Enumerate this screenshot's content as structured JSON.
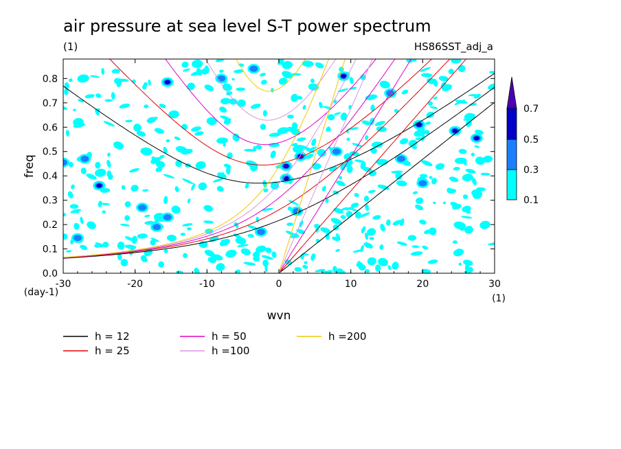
{
  "chart_data": {
    "type": "heatmap",
    "title": "air pressure at sea level S-T power spectrum",
    "subtitle_left": "(1)",
    "subtitle_right": "HS86SST_adj_a",
    "xlabel": "wvn",
    "ylabel": "freq",
    "x_unit_label": "(1)",
    "y_unit_label": "(day-1)",
    "xlim": [
      -30,
      30
    ],
    "ylim": [
      0,
      0.88
    ],
    "x_ticks": [
      -30,
      -20,
      -10,
      0,
      10,
      20,
      30
    ],
    "x_tick_labels": [
      "-30",
      "-20",
      "-10",
      "0",
      "10",
      "20",
      "30"
    ],
    "y_ticks": [
      0,
      0.1,
      0.2,
      0.3,
      0.4,
      0.5,
      0.6,
      0.7,
      0.8
    ],
    "y_tick_labels": [
      "0.0",
      "0.1",
      "0.2",
      "0.3",
      "0.4",
      "0.5",
      "0.6",
      "0.7",
      "0.8"
    ],
    "contour_levels": [
      0.1,
      0.3,
      0.5,
      0.7
    ],
    "colorbar_labels": [
      "0.1",
      "0.3",
      "0.5",
      "0.7"
    ],
    "colorbar_colors": [
      "#00ffff",
      "#1a7fff",
      "#0000c8",
      "#4a00b4"
    ],
    "dispersion_curves": [
      {
        "name": "h = 12",
        "depth": 12,
        "color": "#000000"
      },
      {
        "name": "h = 25",
        "depth": 25,
        "color": "#e00000"
      },
      {
        "name": "h = 50",
        "depth": 50,
        "color": "#e000c8"
      },
      {
        "name": "h =100",
        "depth": 100,
        "color": "#d796e0"
      },
      {
        "name": "h =200",
        "depth": 200,
        "color": "#f0c800"
      }
    ],
    "high_power_spots": [
      {
        "wvn": 1.0,
        "freq": 0.44,
        "level": 0.7
      },
      {
        "wvn": 1.0,
        "freq": 0.39,
        "level": 0.5
      },
      {
        "wvn": 3.0,
        "freq": 0.48,
        "level": 0.5
      },
      {
        "wvn": -30.0,
        "freq": 0.455,
        "level": 0.3
      },
      {
        "wvn": -25.0,
        "freq": 0.36,
        "level": 0.5
      },
      {
        "wvn": -15.5,
        "freq": 0.785,
        "level": 0.5
      },
      {
        "wvn": 9.0,
        "freq": 0.81,
        "level": 0.5
      },
      {
        "wvn": -19.0,
        "freq": 0.27,
        "level": 0.3
      },
      {
        "wvn": -15.5,
        "freq": 0.23,
        "level": 0.3
      },
      {
        "wvn": -8.0,
        "freq": 0.8,
        "level": 0.3
      },
      {
        "wvn": 19.5,
        "freq": 0.61,
        "level": 0.5
      },
      {
        "wvn": 24.5,
        "freq": 0.585,
        "level": 0.5
      },
      {
        "wvn": 27.5,
        "freq": 0.555,
        "level": 0.5
      },
      {
        "wvn": 17.0,
        "freq": 0.47,
        "level": 0.3
      },
      {
        "wvn": 2.5,
        "freq": 0.255,
        "level": 0.3
      },
      {
        "wvn": -2.5,
        "freq": 0.17,
        "level": 0.3
      },
      {
        "wvn": -17.0,
        "freq": 0.19,
        "level": 0.3
      },
      {
        "wvn": -27.0,
        "freq": 0.47,
        "level": 0.3
      },
      {
        "wvn": -3.5,
        "freq": 0.84,
        "level": 0.3
      },
      {
        "wvn": 15.5,
        "freq": 0.74,
        "level": 0.3
      },
      {
        "wvn": 20.0,
        "freq": 0.37,
        "level": 0.3
      },
      {
        "wvn": 8.0,
        "freq": 0.5,
        "level": 0.3
      },
      {
        "wvn": -28.0,
        "freq": 0.145,
        "level": 0.3
      }
    ]
  }
}
